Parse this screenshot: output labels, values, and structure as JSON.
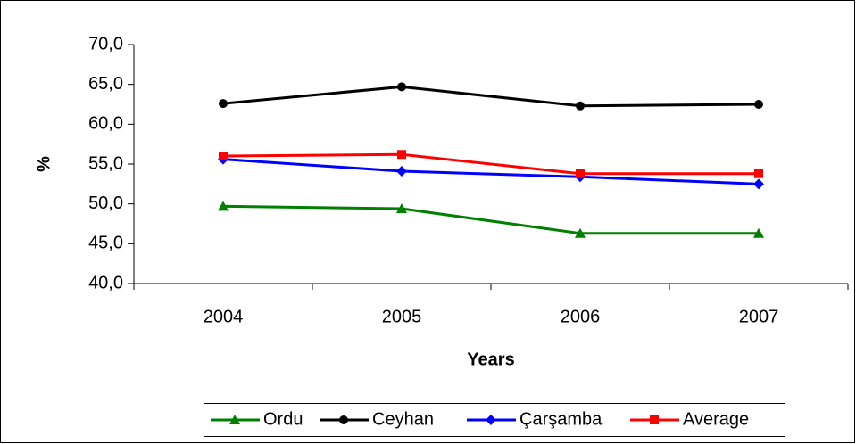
{
  "chart_data": {
    "type": "line",
    "x_label": "Years",
    "y_label": "%",
    "categories": [
      "2004",
      "2005",
      "2006",
      "2007"
    ],
    "series": [
      {
        "name": "Ordu",
        "color": "#008000",
        "marker": "triangle",
        "values": [
          49.7,
          49.4,
          46.3,
          46.3
        ]
      },
      {
        "name": "Ceyhan",
        "color": "#000000",
        "marker": "circle",
        "values": [
          62.6,
          64.7,
          62.3,
          62.5
        ]
      },
      {
        "name": "Çarşamba",
        "color": "#0000ff",
        "marker": "diamond",
        "values": [
          55.6,
          54.1,
          53.4,
          52.5
        ]
      },
      {
        "name": "Average",
        "color": "#ff0000",
        "marker": "square",
        "values": [
          56.0,
          56.2,
          53.8,
          53.8
        ]
      }
    ],
    "ylim": [
      40,
      70
    ],
    "yticks": [
      {
        "value": 40,
        "label": "40,0"
      },
      {
        "value": 45,
        "label": "45,0"
      },
      {
        "value": 50,
        "label": "50,0"
      },
      {
        "value": 55,
        "label": "55,0"
      },
      {
        "value": 60,
        "label": "60,0"
      },
      {
        "value": 65,
        "label": "65,0"
      },
      {
        "value": 70,
        "label": "70,0"
      }
    ],
    "legend": "bottom"
  }
}
